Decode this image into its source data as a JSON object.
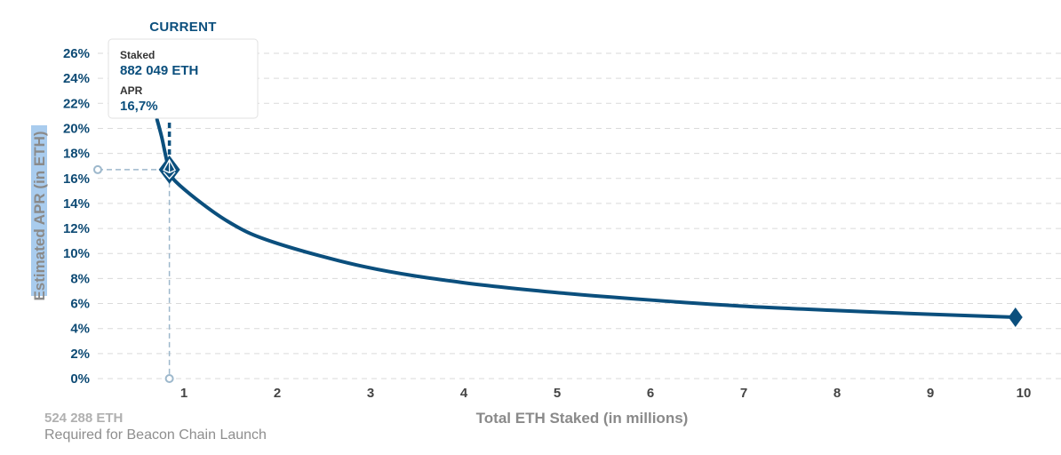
{
  "chart_data": {
    "type": "line",
    "ylabel": "Estimated APR (in ETH)",
    "xlabel": "Total ETH Staked  (in millions)",
    "yticks": [
      "0%",
      "2%",
      "4%",
      "6%",
      "8%",
      "10%",
      "12%",
      "14%",
      "16%",
      "18%",
      "20%",
      "22%",
      "24%",
      "26%"
    ],
    "xticks": [
      "1",
      "2",
      "3",
      "4",
      "5",
      "6",
      "7",
      "8",
      "9",
      "10"
    ],
    "xlim": [
      0,
      10.6
    ],
    "ylim": [
      0,
      26
    ],
    "grid": "horizontal dashed",
    "series": [
      {
        "x": [
          0.75,
          0.8,
          0.882,
          1,
          1.5,
          2,
          3,
          4,
          5,
          6,
          7,
          8,
          9,
          9.95
        ],
        "y": [
          20.7,
          19.3,
          16.7,
          15.4,
          12.6,
          10.9,
          8.9,
          7.7,
          6.9,
          6.3,
          5.8,
          5.45,
          5.15,
          4.9
        ]
      }
    ],
    "current": {
      "label": "CURRENT",
      "x": 0.882,
      "y": 16.7,
      "tooltip": {
        "staked_label": "Staked",
        "staked_value": "882 049 ETH",
        "apr_label": "APR",
        "apr_value": "16,7%"
      }
    },
    "endpoint": {
      "x": 9.95,
      "y": 4.9
    },
    "launch_note": {
      "value": "524 288 ETH",
      "text": "Required for Beacon Chain Launch"
    }
  },
  "colors": {
    "line": "#0b4f7d",
    "tick_y": "#0d4a74",
    "grid": "#dadada",
    "guide": "#9db8cc",
    "ylabel_highlight": "#a9ccee",
    "tooltip_value": "#0b4f7d"
  }
}
